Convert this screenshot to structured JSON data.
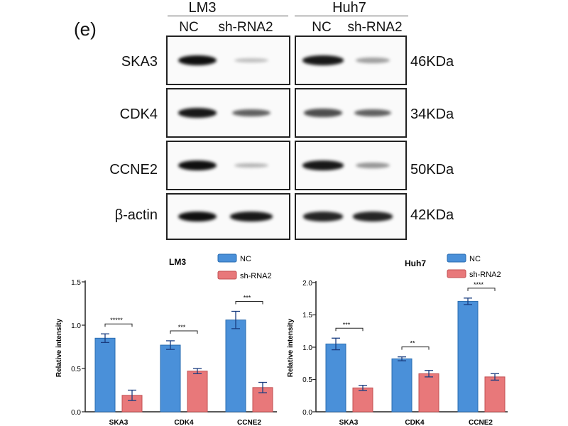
{
  "panel_label": "(e)",
  "blot": {
    "cell_lines": [
      "LM3",
      "Huh7"
    ],
    "lanes": [
      "NC",
      "sh-RNA2"
    ],
    "rows": [
      {
        "protein": "SKA3",
        "kda": "46KDa"
      },
      {
        "protein": "CDK4",
        "kda": "34KDa"
      },
      {
        "protein": "CCNE2",
        "kda": "50KDa"
      },
      {
        "protein": "β-actin",
        "kda": "42KDa"
      }
    ],
    "band_intensity": {
      "LM3": [
        [
          1.0,
          0.15
        ],
        [
          0.95,
          0.6
        ],
        [
          1.0,
          0.2
        ],
        [
          1.0,
          0.95
        ]
      ],
      "Huh7": [
        [
          0.95,
          0.3
        ],
        [
          0.7,
          0.6
        ],
        [
          0.95,
          0.35
        ],
        [
          0.9,
          0.9
        ]
      ]
    }
  },
  "colors": {
    "nc": "#4a90d9",
    "sh": "#e8787a",
    "axis": "#222222"
  },
  "chart_data": [
    {
      "type": "bar",
      "title": "LM3",
      "categories": [
        "SKA3",
        "CDK4",
        "CCNE2"
      ],
      "series": [
        {
          "name": "NC",
          "values": [
            0.85,
            0.77,
            1.06
          ],
          "errors": [
            0.05,
            0.05,
            0.1
          ]
        },
        {
          "name": "sh-RNA2",
          "values": [
            0.19,
            0.47,
            0.28
          ],
          "errors": [
            0.06,
            0.03,
            0.06
          ]
        }
      ],
      "significance": [
        "*****",
        "***",
        "***"
      ],
      "xlabel": "",
      "ylabel": "Relative intensity",
      "ylim": [
        0,
        1.5
      ],
      "yticks": [
        0,
        0.5,
        1.0,
        1.5
      ],
      "ytick_labels": [
        "0.0",
        "0.5",
        "1.0",
        "1.5"
      ],
      "legend": [
        "NC",
        "sh-RNA2"
      ]
    },
    {
      "type": "bar",
      "title": "Huh7",
      "categories": [
        "SKA3",
        "CDK4",
        "CCNE2"
      ],
      "series": [
        {
          "name": "NC",
          "values": [
            1.05,
            0.82,
            1.71
          ],
          "errors": [
            0.09,
            0.03,
            0.05
          ]
        },
        {
          "name": "sh-RNA2",
          "values": [
            0.37,
            0.59,
            0.54
          ],
          "errors": [
            0.04,
            0.05,
            0.05
          ]
        }
      ],
      "significance": [
        "***",
        "**",
        "****"
      ],
      "xlabel": "",
      "ylabel": "Relative intensity",
      "ylim": [
        0,
        2.0
      ],
      "yticks": [
        0,
        0.5,
        1.0,
        1.5,
        2.0
      ],
      "ytick_labels": [
        "0.0",
        "0.5",
        "1.0",
        "1.5",
        "2.0"
      ],
      "legend": [
        "NC",
        "sh-RNA2"
      ]
    }
  ]
}
